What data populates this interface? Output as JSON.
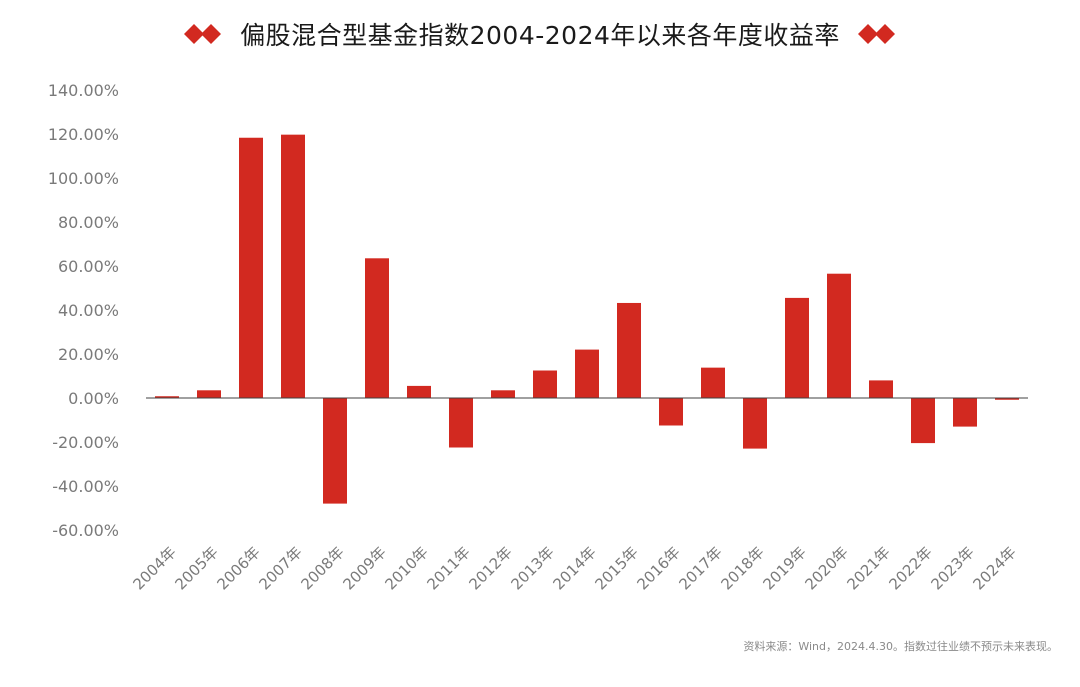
{
  "header": {
    "title": "偏股混合型基金指数2004-2024年以来各年度收益率"
  },
  "footer": {
    "source_note": "资料来源：Wind，2024.4.30。指数过往业绩不预示未来表现。"
  },
  "colors": {
    "accent": "#d22920",
    "axis_text": "#7a7a7a",
    "axis_line": "#404040"
  },
  "chart_data": {
    "type": "bar",
    "title": "偏股混合型基金指数2004-2024年以来各年度收益率",
    "xlabel": "",
    "ylabel": "",
    "ylim": [
      -60,
      140
    ],
    "ytick_step": 20,
    "yticks": [
      "140.00%",
      "120.00%",
      "100.00%",
      "80.00%",
      "60.00%",
      "40.00%",
      "20.00%",
      "0.00%",
      "-20.00%",
      "-40.00%",
      "-60.00%"
    ],
    "grid": false,
    "legend": "none",
    "categories": [
      "2004年",
      "2005年",
      "2006年",
      "2007年",
      "2008年",
      "2009年",
      "2010年",
      "2011年",
      "2012年",
      "2013年",
      "2014年",
      "2015年",
      "2016年",
      "2017年",
      "2018年",
      "2019年",
      "2020年",
      "2021年",
      "2022年",
      "2023年",
      "2024年"
    ],
    "values": [
      0.8,
      3.5,
      118.3,
      119.7,
      -48.0,
      63.5,
      5.5,
      -22.5,
      3.5,
      12.5,
      22.0,
      43.2,
      -12.5,
      13.8,
      -23.0,
      45.5,
      56.5,
      8.0,
      -20.5,
      -13.0,
      -0.8
    ],
    "unit": "%"
  }
}
